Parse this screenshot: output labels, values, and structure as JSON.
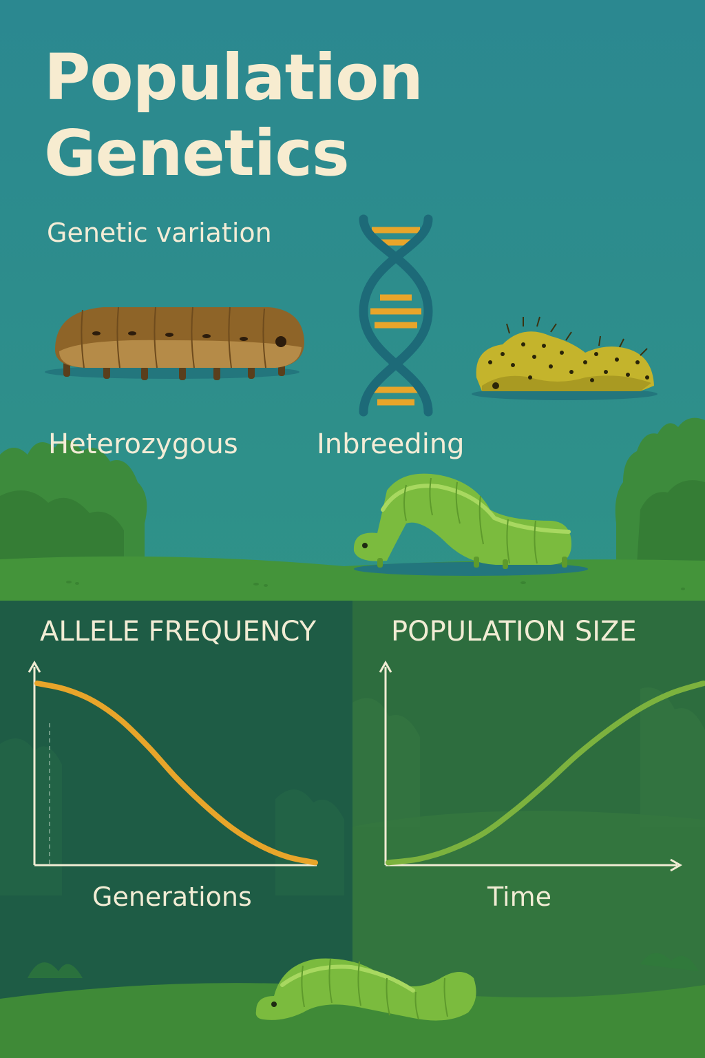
{
  "title": {
    "line1": "Population",
    "line2": "Genetics"
  },
  "subtitle": "Genetic variation",
  "labels": {
    "heterozygous": "Heterozygous",
    "inbreeding": "Inbreeding"
  },
  "colors": {
    "sky": "#2a8a8c",
    "title_text": "#f7ecd0",
    "allele_curve": "#e8a52a",
    "population_curve": "#7cb23e",
    "left_panel": "#1d5c44",
    "right_panel": "#2c6f3e",
    "grass": "#3e8a35"
  },
  "illustrations": {
    "dna": "dna-double-helix-icon",
    "caterpillar_brown": "brown-caterpillar",
    "caterpillar_spotted": "yellow-spotted-caterpillar",
    "caterpillar_green_arched": "green-caterpillar-arched",
    "caterpillar_green_bottom": "green-caterpillar-bottom",
    "bushes": "bush-illustration"
  },
  "chart_data": [
    {
      "type": "line",
      "title": "ALLELE FREQUENCY",
      "xlabel": "Generations",
      "ylabel": "",
      "trend": "decreasing sigmoid",
      "x": [
        0,
        1,
        2,
        3,
        4,
        5,
        6,
        7,
        8,
        9,
        10
      ],
      "series": [
        {
          "values": [
            0.95,
            0.92,
            0.86,
            0.76,
            0.62,
            0.46,
            0.32,
            0.2,
            0.11,
            0.05,
            0.02
          ]
        }
      ],
      "ylim": [
        0,
        1
      ],
      "grid": false
    },
    {
      "type": "line",
      "title": "POPULATION SIZE",
      "xlabel": "Time",
      "ylabel": "",
      "trend": "increasing sigmoid",
      "x": [
        0,
        1,
        2,
        3,
        4,
        5,
        6,
        7,
        8,
        9,
        10
      ],
      "series": [
        {
          "values": [
            0.02,
            0.04,
            0.09,
            0.17,
            0.29,
            0.43,
            0.58,
            0.71,
            0.82,
            0.9,
            0.95
          ]
        }
      ],
      "ylim": [
        0,
        1
      ],
      "grid": false
    }
  ]
}
